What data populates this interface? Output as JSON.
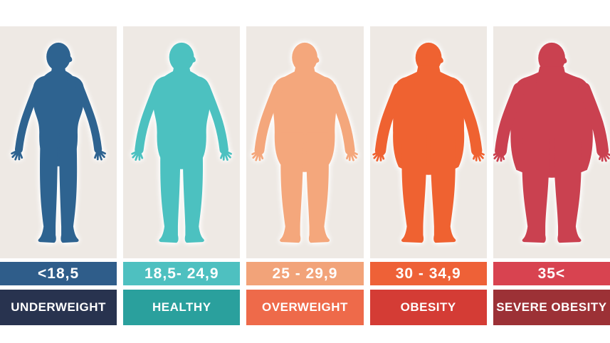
{
  "page": {
    "background": "#ffffff",
    "panel_bg": "#eee9e4",
    "text_color": "#ffffff"
  },
  "categories": [
    {
      "size_level": 1,
      "range": "<18,5",
      "label": "UNDERWEIGHT",
      "figure_color": "#2e6390",
      "range_bg": "#2f5d8a",
      "label_bg": "#28334f"
    },
    {
      "size_level": 2,
      "range": "18,5- 24,9",
      "label": "HEALTHY",
      "figure_color": "#4cc1c0",
      "range_bg": "#4ec0c0",
      "label_bg": "#2aa09d"
    },
    {
      "size_level": 3,
      "range": "25 - 29,9",
      "label": "OVERWEIGHT",
      "figure_color": "#f4a77c",
      "range_bg": "#f2a379",
      "label_bg": "#ee6a4a"
    },
    {
      "size_level": 4,
      "range": "30 - 34,9",
      "label": "OBESITY",
      "figure_color": "#ef6231",
      "range_bg": "#ee6137",
      "label_bg": "#d43c35"
    },
    {
      "size_level": 5,
      "range": "35<",
      "label": "SEVERE OBESITY",
      "figure_color": "#ca4150",
      "range_bg": "#d84350",
      "label_bg": "#9c3136"
    }
  ]
}
